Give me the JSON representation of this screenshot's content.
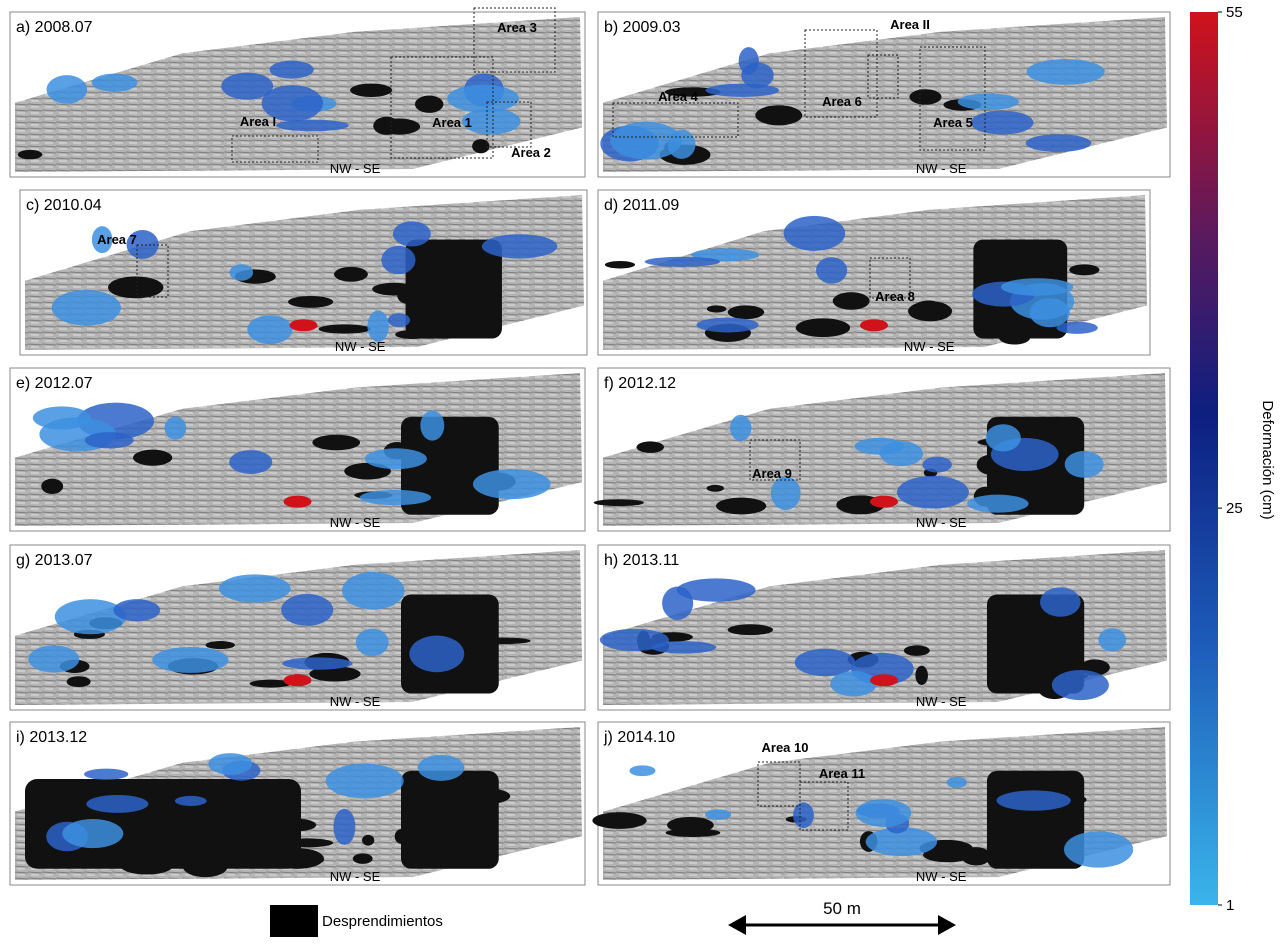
{
  "panels": [
    {
      "label": "a) 2008.07",
      "orientation": "NW - SE",
      "areas": [
        "Area 3",
        "Area 1",
        "Area 2",
        "Area I"
      ]
    },
    {
      "label": "b) 2009.03",
      "orientation": "NW - SE",
      "areas": [
        "Area 4",
        "Area 6",
        "Area II",
        "Area 5"
      ]
    },
    {
      "label": "c) 2010.04",
      "orientation": "NW - SE",
      "areas": [
        "Area 7"
      ]
    },
    {
      "label": "d) 2011.09",
      "orientation": "NW - SE",
      "areas": [
        "Area 8"
      ]
    },
    {
      "label": "e) 2012.07",
      "orientation": "NW - SE",
      "areas": []
    },
    {
      "label": "f) 2012.12",
      "orientation": "NW - SE",
      "areas": [
        "Area 9"
      ]
    },
    {
      "label": "g) 2013.07",
      "orientation": "NW - SE",
      "areas": []
    },
    {
      "label": "h) 2013.11",
      "orientation": "NW - SE",
      "areas": []
    },
    {
      "label": "i) 2013.12",
      "orientation": "NW - SE",
      "areas": []
    },
    {
      "label": "j) 2014.10",
      "orientation": "NW - SE",
      "areas": [
        "Area 10",
        "Area 11"
      ]
    }
  ],
  "colorbar": {
    "title": "Deformación (cm)",
    "lim": [
      1,
      55
    ],
    "ticks": [
      55,
      25,
      1
    ]
  },
  "legend": {
    "label": "Desprendimientos"
  },
  "scale_bar": {
    "label": "50 m"
  }
}
